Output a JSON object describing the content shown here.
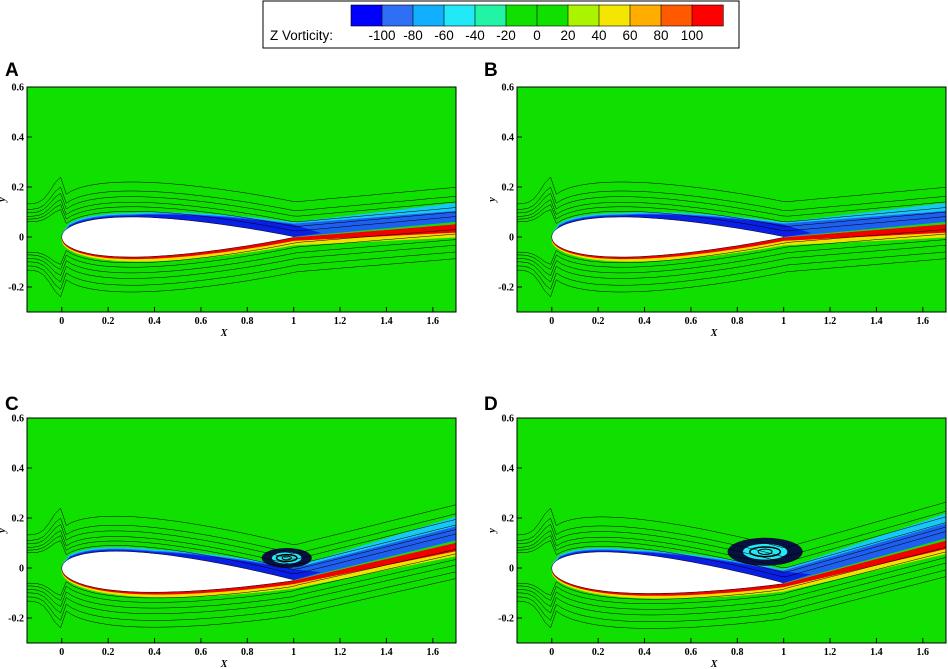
{
  "legend": {
    "title": "Z Vorticity:",
    "tick_labels": [
      "-100",
      "-80",
      "-60",
      "-40",
      "-20",
      "0",
      "20",
      "40",
      "60",
      "80",
      "100"
    ],
    "colors": [
      "#0000ff",
      "#2f6ff6",
      "#10b0ff",
      "#22e9f6",
      "#22f4a5",
      "#10e000",
      "#10e000",
      "#aaf400",
      "#f4e600",
      "#ffae00",
      "#ff5a00",
      "#ff0000"
    ]
  },
  "colors": {
    "background_field": "#10e000",
    "negative_core": "#0a1fe6",
    "negative_mid": "#1e5ff0",
    "negative_edge": "#16c8f4",
    "positive_core": "#f20000",
    "positive_mid": "#ff7a00",
    "positive_edge": "#f0e200",
    "airfoil": "#ffffff",
    "streamline": "#000000"
  },
  "chart_data": [
    {
      "panel": "A",
      "type": "contour",
      "xlabel": "X",
      "ylabel": "y",
      "xlim": [
        -0.15,
        1.7
      ],
      "ylim": [
        -0.3,
        0.6
      ],
      "xticks": [
        "0",
        "0.2",
        "0.4",
        "0.6",
        "0.8",
        "1",
        "1.2",
        "1.4",
        "1.6"
      ],
      "yticks": [
        "-0.2",
        "0",
        "0.2",
        "0.4",
        "0.6"
      ],
      "xtick_values": [
        0,
        0.2,
        0.4,
        0.6,
        0.8,
        1,
        1.2,
        1.4,
        1.6
      ],
      "ytick_values": [
        -0.2,
        0,
        0.2,
        0.4,
        0.6
      ],
      "angle_of_attack_deg": 0,
      "wake_slope": 0.08,
      "upper_wedge_start": 0.3,
      "vortex": null
    },
    {
      "panel": "B",
      "type": "contour",
      "xlabel": "X",
      "ylabel": "y",
      "xlim": [
        -0.15,
        1.7
      ],
      "ylim": [
        -0.3,
        0.6
      ],
      "xticks": [
        "0",
        "0.2",
        "0.4",
        "0.6",
        "0.8",
        "1",
        "1.2",
        "1.4",
        "1.6"
      ],
      "yticks": [
        "-0.2",
        "0",
        "0.2",
        "0.4",
        "0.6"
      ],
      "xtick_values": [
        0,
        0.2,
        0.4,
        0.6,
        0.8,
        1,
        1.2,
        1.4,
        1.6
      ],
      "ytick_values": [
        -0.2,
        0,
        0.2,
        0.4,
        0.6
      ],
      "angle_of_attack_deg": 0,
      "wake_slope": 0.08,
      "upper_wedge_start": 0.3,
      "vortex": null
    },
    {
      "panel": "C",
      "type": "contour",
      "xlabel": "X",
      "ylabel": "y",
      "xlim": [
        -0.15,
        1.7
      ],
      "ylim": [
        -0.3,
        0.6
      ],
      "xticks": [
        "0",
        "0.2",
        "0.4",
        "0.6",
        "0.8",
        "1",
        "1.2",
        "1.4",
        "1.6"
      ],
      "yticks": [
        "-0.2",
        "0",
        "0.2",
        "0.4",
        "0.6"
      ],
      "xtick_values": [
        0,
        0.2,
        0.4,
        0.6,
        0.8,
        1,
        1.2,
        1.4,
        1.6
      ],
      "ytick_values": [
        -0.2,
        0,
        0.2,
        0.4,
        0.6
      ],
      "angle_of_attack_deg": 8,
      "wake_slope": 0.22,
      "upper_wedge_start": 0.4,
      "vortex": {
        "x": 0.97,
        "y": 0.04,
        "rx": 0.08,
        "ry": 0.025
      }
    },
    {
      "panel": "D",
      "type": "contour",
      "xlabel": "X",
      "ylabel": "y",
      "xlim": [
        -0.15,
        1.7
      ],
      "ylim": [
        -0.3,
        0.6
      ],
      "xticks": [
        "0",
        "0.2",
        "0.4",
        "0.6",
        "0.8",
        "1",
        "1.2",
        "1.4",
        "1.6"
      ],
      "yticks": [
        "-0.2",
        "0",
        "0.2",
        "0.4",
        "0.6"
      ],
      "xtick_values": [
        0,
        0.2,
        0.4,
        0.6,
        0.8,
        1,
        1.2,
        1.4,
        1.6
      ],
      "ytick_values": [
        -0.2,
        0,
        0.2,
        0.4,
        0.6
      ],
      "angle_of_attack_deg": 10,
      "wake_slope": 0.25,
      "upper_wedge_start": 0.35,
      "vortex": {
        "x": 0.92,
        "y": 0.065,
        "rx": 0.12,
        "ry": 0.035
      }
    }
  ]
}
